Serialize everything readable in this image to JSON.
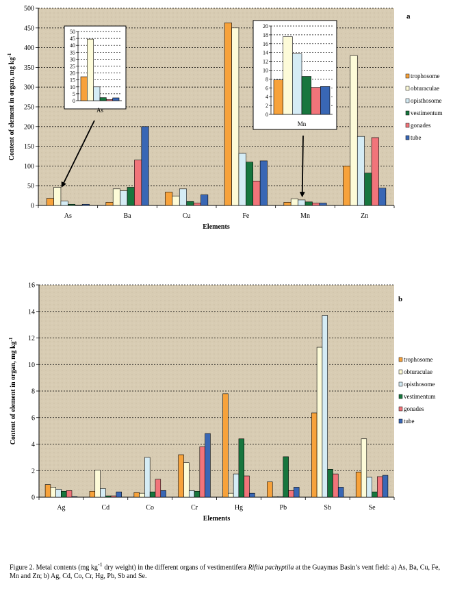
{
  "series_names": [
    "trophosome",
    "obturaculae",
    "opisthosome",
    "vestimentum",
    "gonades",
    "tube"
  ],
  "series_colors": [
    "#f7a23b",
    "#fdfbd8",
    "#d5ecf5",
    "#17763e",
    "#f1747a",
    "#3967b5"
  ],
  "chart_data": [
    {
      "type": "bar",
      "panel_label": "a",
      "title": "",
      "xlabel": "Elements",
      "ylabel": "Content of element in organ, mg kg",
      "ylabel_superscript": "-1",
      "ylim": [
        0,
        500
      ],
      "yticks": [
        0,
        50,
        100,
        150,
        200,
        250,
        300,
        350,
        400,
        450,
        500
      ],
      "categories": [
        "As",
        "Ba",
        "Cu",
        "Fe",
        "Mn",
        "Zn"
      ],
      "series": [
        {
          "name": "trophosome",
          "values": [
            18,
            8,
            34,
            463,
            8,
            100
          ]
        },
        {
          "name": "obturaculae",
          "values": [
            46,
            42,
            24,
            450,
            17,
            380
          ]
        },
        {
          "name": "opisthosome",
          "values": [
            11,
            37,
            42,
            132,
            14,
            175
          ]
        },
        {
          "name": "vestimentum",
          "values": [
            3,
            46,
            10,
            110,
            9,
            82
          ]
        },
        {
          "name": "gonades",
          "values": [
            1,
            115,
            6,
            62,
            6,
            172
          ]
        },
        {
          "name": "tube",
          "values": [
            3,
            200,
            27,
            113,
            6,
            44
          ]
        }
      ],
      "insets": [
        {
          "category_label": "As",
          "ylim": [
            0,
            50
          ],
          "yticks": [
            0,
            5,
            10,
            15,
            20,
            25,
            30,
            35,
            40,
            45,
            50
          ],
          "values": [
            17.3,
            44.5,
            10,
            2.2,
            0.8,
            2
          ]
        },
        {
          "category_label": "Mn",
          "ylim": [
            0,
            20
          ],
          "yticks": [
            0,
            2,
            4,
            6,
            8,
            10,
            12,
            14,
            16,
            18,
            20
          ],
          "values": [
            7.8,
            17.6,
            13.7,
            8.6,
            6.1,
            6.3
          ]
        }
      ]
    },
    {
      "type": "bar",
      "panel_label": "b",
      "title": "",
      "xlabel": "Elements",
      "ylabel": "Content of element in organ,  mg kg",
      "ylabel_superscript": "-1",
      "ylim": [
        0,
        16
      ],
      "yticks": [
        0,
        2,
        4,
        6,
        8,
        10,
        12,
        14,
        16
      ],
      "categories": [
        "Ag",
        "Cd",
        "Co",
        "Cr",
        "Hg",
        "Pb",
        "Sb",
        "Se"
      ],
      "series": [
        {
          "name": "trophosome",
          "values": [
            0.95,
            0.45,
            0.35,
            3.2,
            7.8,
            1.15,
            6.35,
            1.9
          ]
        },
        {
          "name": "obturaculae",
          "values": [
            0.75,
            2.05,
            0.3,
            2.6,
            0.3,
            0.05,
            11.3,
            4.4
          ]
        },
        {
          "name": "opisthosome",
          "values": [
            0.6,
            0.65,
            3.0,
            0.5,
            1.75,
            0.05,
            13.7,
            1.5
          ]
        },
        {
          "name": "vestimentum",
          "values": [
            0.45,
            0.1,
            0.4,
            0.45,
            4.4,
            3.05,
            2.1,
            0.4
          ]
        },
        {
          "name": "gonades",
          "values": [
            0.5,
            0.1,
            1.35,
            3.8,
            1.6,
            0.5,
            1.75,
            1.55
          ]
        },
        {
          "name": "tube",
          "values": [
            0.05,
            0.4,
            0.5,
            4.8,
            0.3,
            0.75,
            0.75,
            1.65
          ]
        }
      ]
    }
  ],
  "caption": {
    "prefix": "Figure 2. Metal contents (mg kg",
    "sup": "-1",
    "middle": " dry weight) in the different organs of vestimentifera ",
    "species": "Riftia pachyptila",
    "suffix": " at  the Guaymas Basin’s vent field: a) As, Ba, Cu, Fe, Mn and Zn; b) Ag, Cd, Co, Cr, Hg, Pb, Sb and Se."
  }
}
